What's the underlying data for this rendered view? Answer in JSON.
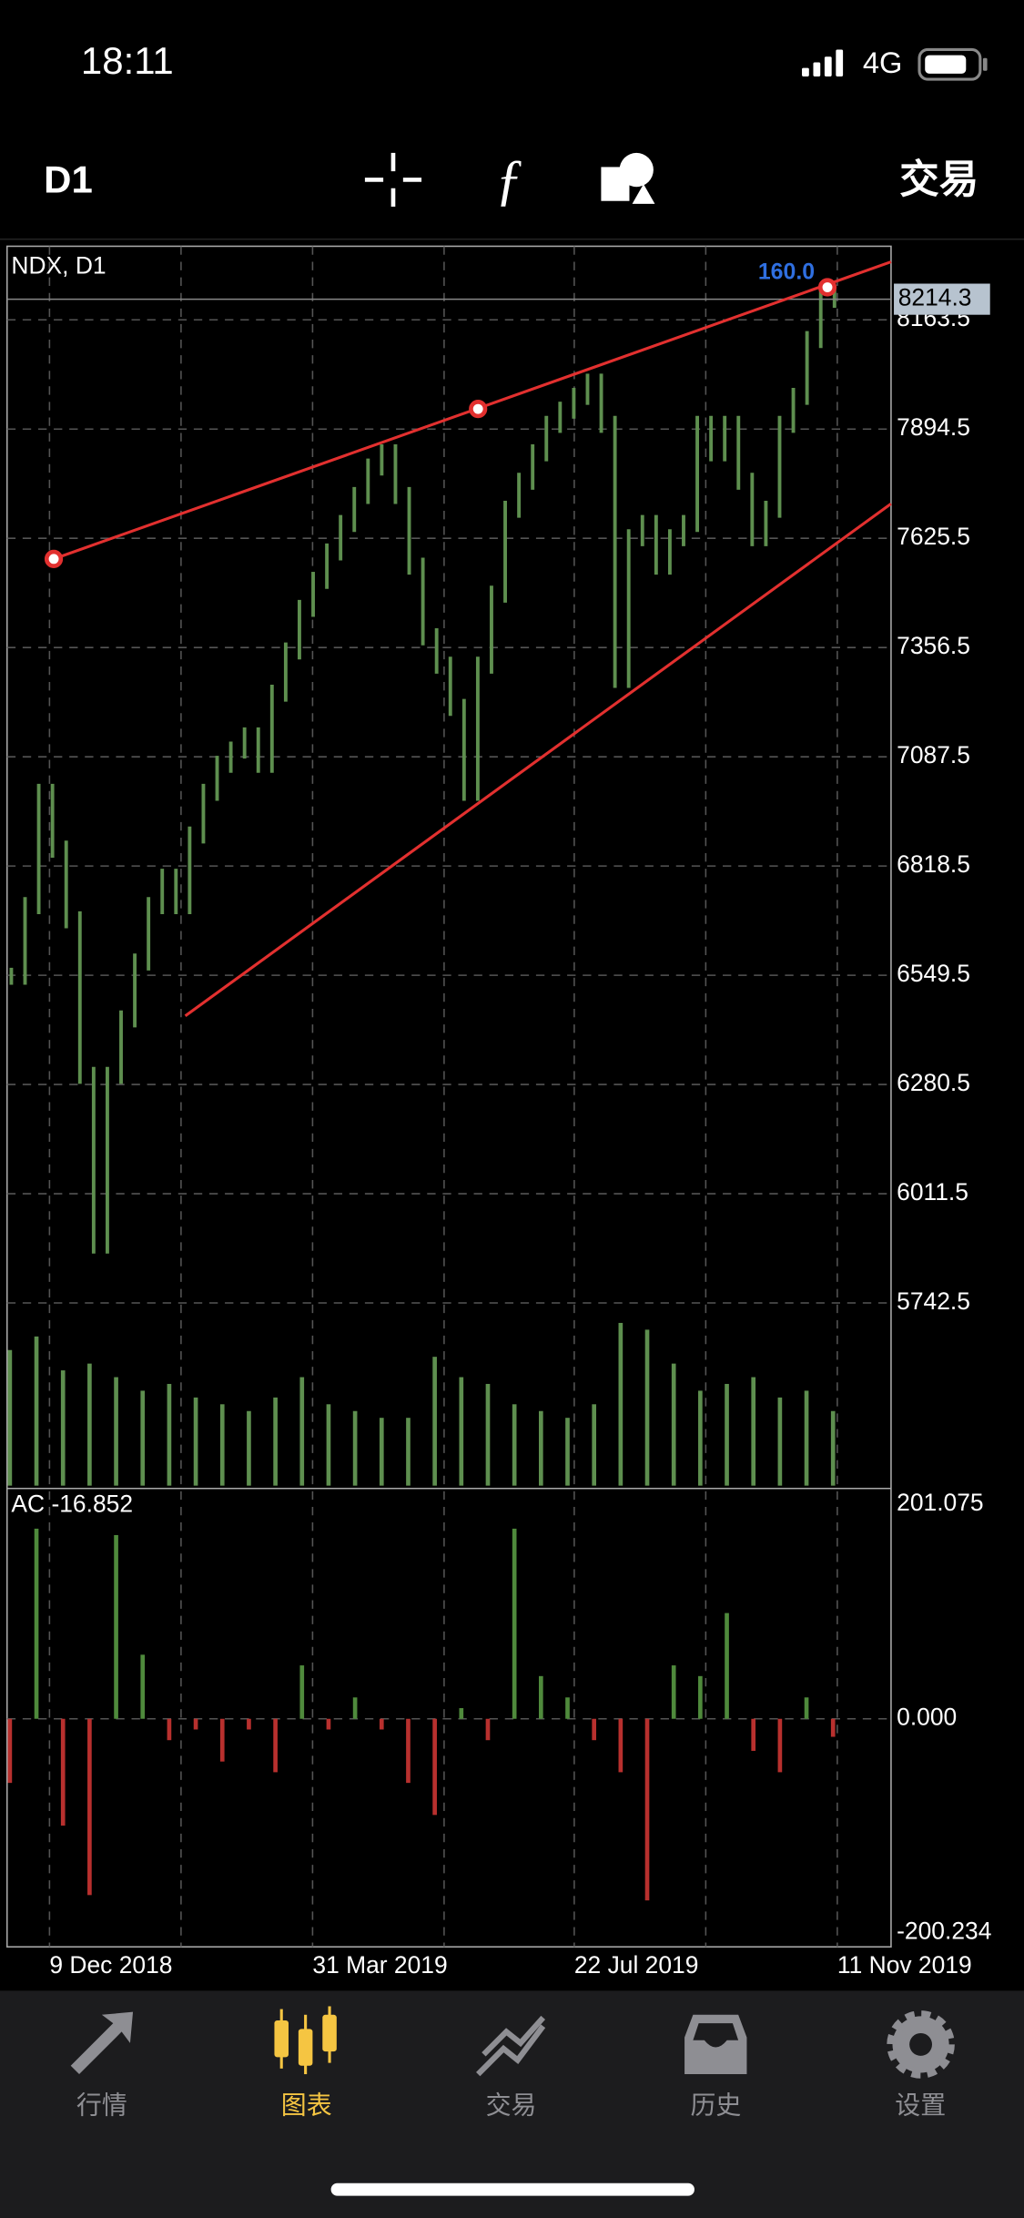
{
  "status_bar": {
    "time": "18:11",
    "network": "4G"
  },
  "toolbar": {
    "period": "D1",
    "trade": "交易"
  },
  "chart": {
    "title": "NDX, D1",
    "object_label": "160.0",
    "current_price": 8214.3,
    "x_labels": [
      "9 Dec 2018",
      "31 Mar 2019",
      "22 Jul 2019",
      "11 Nov 2019"
    ],
    "price": {
      "ylim": [
        5292.7,
        8344.7
      ],
      "yticks": [
        8163.5,
        7894.5,
        7625.5,
        7356.5,
        7087.5,
        6818.5,
        6549.5,
        6280.5,
        6011.5,
        5742.5
      ],
      "values": [
        6547,
        6721,
        7000,
        6860,
        6686,
        6303,
        5885,
        6303,
        6442,
        6582,
        6721,
        6791,
        6721,
        6895,
        7000,
        7069,
        7104,
        7139,
        7069,
        7244,
        7348,
        7453,
        7522,
        7592,
        7662,
        7731,
        7801,
        7836,
        7731,
        7557,
        7383,
        7313,
        7209,
        7000,
        7313,
        7488,
        7697,
        7766,
        7836,
        7906,
        7941,
        7975,
        8010,
        7906,
        7278,
        7627,
        7662,
        7557,
        7627,
        7662,
        7906,
        7836,
        7906,
        7766,
        7627,
        7697,
        7906,
        7975,
        8115,
        8219,
        8214
      ],
      "color": "#5e8f4f"
    },
    "volume": {
      "values": [
        100,
        110,
        85,
        90,
        80,
        70,
        75,
        65,
        60,
        55,
        65,
        80,
        60,
        55,
        50,
        50,
        95,
        80,
        75,
        60,
        55,
        50,
        60,
        120,
        115,
        90,
        70,
        75,
        80,
        65,
        70,
        55
      ],
      "color": "#5e8f4f"
    },
    "indicator": {
      "title": "AC -16.852",
      "ylim": [
        -200.234,
        201.075
      ],
      "yticks": [
        201.075,
        {
          "value": 0,
          "label": "0.000"
        },
        -200.234
      ],
      "values": [
        -60,
        178,
        -100,
        -165,
        172,
        60,
        -20,
        -10,
        -40,
        -10,
        -50,
        50,
        -10,
        20,
        -10,
        -60,
        -90,
        10,
        -20,
        178,
        40,
        20,
        -20,
        -50,
        -170,
        50,
        40,
        99,
        -30,
        -50,
        20,
        -16.852
      ],
      "up_color": "#4f8a3c",
      "down_color": "#b8302e"
    }
  },
  "tab_bar": {
    "active": 1,
    "items": [
      "行情",
      "图表",
      "交易",
      "历史",
      "设置"
    ]
  }
}
